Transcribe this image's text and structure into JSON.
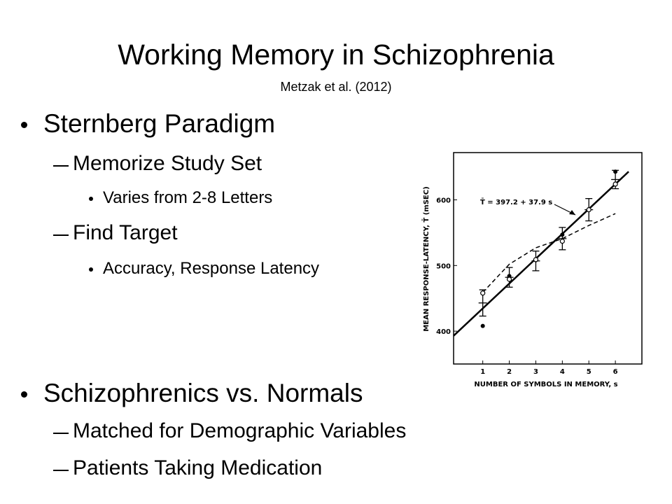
{
  "title": "Working Memory in Schizophrenia",
  "subtitle": "Metzak et al. (2012)",
  "bullets": [
    {
      "text": "Sternberg Paradigm",
      "children": [
        {
          "text": "Memorize Study Set",
          "children": [
            {
              "text": "Varies from 2-8 Letters"
            }
          ]
        },
        {
          "text": "Find Target",
          "children": [
            {
              "text": "Accuracy, Response Latency"
            }
          ]
        }
      ]
    },
    {
      "text": "Schizophrenics vs. Normals",
      "children": [
        {
          "text": "Matched for Demographic Variables"
        },
        {
          "text": "Patients Taking Medication"
        }
      ]
    }
  ],
  "figure": {
    "chart_data": {
      "type": "scatter",
      "xlabel": "NUMBER OF SYMBOLS IN MEMORY, s",
      "ylabel": "MEAN RESPONSE-LATENCY, T̄   (mSEC)",
      "annotation": "T̄ = 397.2 + 37.9 s",
      "xlim": [
        -0.1,
        7.0
      ],
      "ylim": [
        350,
        672
      ],
      "xticks": [
        1,
        2,
        3,
        4,
        5,
        6
      ],
      "yticks": [
        400,
        500,
        600
      ],
      "series": [
        {
          "style": "fit",
          "color": "#000000",
          "x": [
            -0.1,
            6.5
          ],
          "values": [
            393,
            643
          ]
        },
        {
          "style": "dashed",
          "color": "#000000",
          "x": [
            1,
            2,
            3,
            4,
            5,
            6
          ],
          "values": [
            459,
            502,
            527,
            541,
            561,
            579
          ]
        },
        {
          "style": "errorbar",
          "color": "#000000",
          "x": [
            1,
            2,
            3,
            4,
            5,
            6
          ],
          "values": [
            443,
            482,
            507,
            541,
            585,
            631
          ],
          "errors": [
            20,
            15,
            15,
            17,
            17,
            14
          ]
        },
        {
          "style": "filled",
          "color": "#000000",
          "x": [
            1,
            2,
            3,
            4,
            5,
            6
          ],
          "values": [
            408,
            484,
            508,
            547,
            585,
            643
          ]
        },
        {
          "style": "open",
          "color": "#000000",
          "x": [
            1,
            2,
            3,
            4,
            5,
            6
          ],
          "values": [
            458,
            479,
            509,
            537,
            585,
            624
          ]
        }
      ]
    }
  }
}
